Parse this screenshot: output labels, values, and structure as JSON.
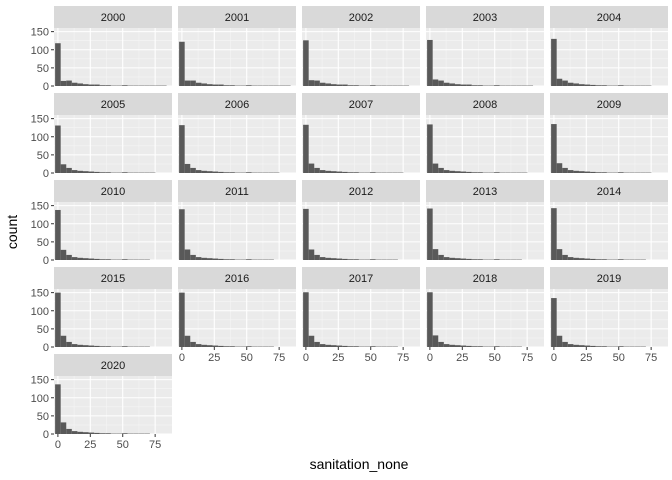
{
  "chart_data": {
    "type": "histogram",
    "xlabel": "sanitation_none",
    "ylabel": "count",
    "xlim": [
      -3,
      88
    ],
    "ylim": [
      0,
      160
    ],
    "x_ticks": [
      0,
      25,
      50,
      75
    ],
    "y_ticks": [
      0,
      50,
      100,
      150
    ],
    "bin_width": 4.3,
    "bin_centers": [
      0,
      4.3,
      8.6,
      12.9,
      17.2,
      21.5,
      25.8,
      30.1,
      34.4,
      38.7,
      43,
      47.3,
      51.6,
      55.9,
      60.2,
      64.5,
      68.8,
      73.1,
      77.4,
      81.7,
      86
    ],
    "panels": [
      {
        "label": "2000",
        "counts": [
          118,
          14,
          15,
          9,
          7,
          5,
          4,
          4,
          2,
          2,
          1,
          1,
          2,
          1,
          1,
          1,
          1,
          1,
          1,
          1,
          0
        ]
      },
      {
        "label": "2001",
        "counts": [
          122,
          15,
          15,
          9,
          7,
          5,
          4,
          4,
          2,
          2,
          1,
          1,
          2,
          1,
          1,
          1,
          1,
          1,
          1,
          1,
          0
        ]
      },
      {
        "label": "2002",
        "counts": [
          126,
          16,
          15,
          9,
          7,
          5,
          4,
          4,
          2,
          2,
          1,
          1,
          2,
          1,
          1,
          1,
          1,
          1,
          1,
          0,
          0
        ]
      },
      {
        "label": "2003",
        "counts": [
          127,
          18,
          15,
          9,
          7,
          5,
          4,
          4,
          2,
          2,
          1,
          1,
          2,
          1,
          1,
          1,
          1,
          1,
          1,
          0,
          0
        ]
      },
      {
        "label": "2004",
        "counts": [
          130,
          20,
          15,
          9,
          7,
          5,
          4,
          3,
          2,
          2,
          1,
          1,
          2,
          1,
          1,
          1,
          1,
          1,
          0,
          0,
          0
        ]
      },
      {
        "label": "2005",
        "counts": [
          131,
          24,
          14,
          8,
          6,
          5,
          4,
          3,
          2,
          2,
          1,
          1,
          2,
          1,
          1,
          1,
          1,
          1,
          0,
          0,
          0
        ]
      },
      {
        "label": "2006",
        "counts": [
          132,
          25,
          14,
          8,
          6,
          5,
          4,
          3,
          2,
          2,
          1,
          1,
          2,
          1,
          1,
          1,
          1,
          1,
          0,
          0,
          0
        ]
      },
      {
        "label": "2007",
        "counts": [
          133,
          26,
          14,
          8,
          6,
          5,
          4,
          3,
          2,
          2,
          1,
          1,
          2,
          1,
          1,
          1,
          1,
          1,
          0,
          0,
          0
        ]
      },
      {
        "label": "2008",
        "counts": [
          134,
          26,
          14,
          8,
          6,
          5,
          4,
          3,
          2,
          2,
          1,
          1,
          2,
          1,
          1,
          1,
          1,
          1,
          0,
          0,
          0
        ]
      },
      {
        "label": "2009",
        "counts": [
          135,
          27,
          14,
          8,
          6,
          5,
          4,
          3,
          2,
          2,
          1,
          1,
          2,
          1,
          1,
          1,
          1,
          1,
          0,
          0,
          0
        ]
      },
      {
        "label": "2010",
        "counts": [
          138,
          28,
          14,
          8,
          6,
          5,
          4,
          3,
          2,
          2,
          1,
          1,
          2,
          1,
          1,
          1,
          1,
          0,
          0,
          0,
          0
        ]
      },
      {
        "label": "2011",
        "counts": [
          140,
          29,
          14,
          8,
          6,
          5,
          4,
          3,
          2,
          2,
          1,
          1,
          2,
          1,
          1,
          1,
          1,
          0,
          0,
          0,
          0
        ]
      },
      {
        "label": "2012",
        "counts": [
          141,
          29,
          14,
          8,
          6,
          5,
          4,
          3,
          2,
          2,
          1,
          1,
          2,
          1,
          1,
          1,
          1,
          0,
          0,
          0,
          0
        ]
      },
      {
        "label": "2013",
        "counts": [
          142,
          30,
          14,
          8,
          6,
          5,
          4,
          3,
          2,
          2,
          1,
          1,
          2,
          1,
          1,
          1,
          1,
          0,
          0,
          0,
          0
        ]
      },
      {
        "label": "2014",
        "counts": [
          143,
          30,
          14,
          8,
          6,
          5,
          4,
          3,
          2,
          2,
          1,
          1,
          2,
          1,
          1,
          1,
          1,
          0,
          0,
          0,
          0
        ]
      },
      {
        "label": "2015",
        "counts": [
          150,
          31,
          14,
          8,
          6,
          5,
          4,
          3,
          2,
          2,
          1,
          1,
          2,
          1,
          1,
          1,
          1,
          0,
          0,
          0,
          0
        ]
      },
      {
        "label": "2016",
        "counts": [
          150,
          31,
          14,
          8,
          6,
          5,
          4,
          3,
          2,
          2,
          1,
          1,
          2,
          1,
          1,
          1,
          1,
          0,
          0,
          0,
          0
        ]
      },
      {
        "label": "2017",
        "counts": [
          151,
          31,
          14,
          8,
          6,
          5,
          4,
          3,
          2,
          2,
          1,
          1,
          2,
          1,
          1,
          1,
          1,
          0,
          0,
          0,
          0
        ]
      },
      {
        "label": "2018",
        "counts": [
          151,
          32,
          14,
          8,
          6,
          5,
          4,
          3,
          2,
          2,
          1,
          1,
          2,
          1,
          1,
          1,
          1,
          0,
          0,
          0,
          0
        ]
      },
      {
        "label": "2019",
        "counts": [
          135,
          31,
          14,
          8,
          6,
          5,
          4,
          3,
          2,
          2,
          1,
          1,
          2,
          1,
          1,
          1,
          1,
          0,
          0,
          0,
          0
        ]
      },
      {
        "label": "2020",
        "counts": [
          137,
          32,
          14,
          8,
          6,
          5,
          4,
          3,
          2,
          2,
          1,
          1,
          2,
          1,
          1,
          1,
          1,
          0,
          0,
          0,
          0
        ]
      }
    ],
    "colors": {
      "bar": "#595959",
      "panel_bg": "#ebebeb",
      "strip_bg": "#d9d9d9",
      "grid_major": "#ffffff",
      "grid_minor": "#f5f5f5"
    }
  }
}
